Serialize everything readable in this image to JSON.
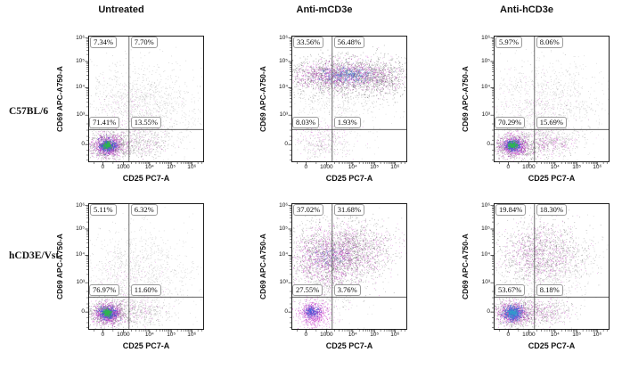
{
  "figure": {
    "column_titles": [
      "Untreated",
      "Anti-mCD3e",
      "Anti-hCD3e"
    ],
    "row_labels": [
      "C57BL/6",
      "hCD3E/Vst"
    ]
  },
  "axes": {
    "x_label": "CD25 PC7-A",
    "y_label": "CD69 APC-A750-A",
    "x_ticks": {
      "labels": [
        "0",
        "1000",
        "10⁴",
        "10⁵",
        "10⁶"
      ],
      "pos": [
        0.12,
        0.3,
        0.53,
        0.72,
        0.9
      ],
      "log_pairs": [
        [
          1,
          2
        ],
        [
          2,
          3
        ],
        [
          3,
          4
        ]
      ],
      "minor_extra": [
        0.045,
        0.21,
        0.954,
        0.986
      ]
    },
    "y_ticks": {
      "labels": [
        "10⁶",
        "10⁵",
        "10⁴",
        "10³",
        "0"
      ],
      "pos": [
        0.012,
        0.2,
        0.41,
        0.63,
        0.865
      ],
      "log_pairs": [
        [
          1,
          0
        ],
        [
          2,
          1
        ],
        [
          3,
          2
        ]
      ],
      "minor_extra": [
        0.7,
        0.75,
        0.8,
        0.83,
        0.91,
        0.95,
        0.99
      ]
    },
    "gate_x": 0.35,
    "gate_y": 0.745,
    "frame_color": "#1c1c1c",
    "gate_color": "#4a4a4a"
  },
  "chart_data": [
    {
      "type": "scatter",
      "row_label": "C57BL/6",
      "treatment": "Untreated",
      "quadrants": {
        "ul": "7.34%",
        "ur": "7.70%",
        "ll": "71.41%",
        "lr": "13.55%"
      },
      "clusters": [
        {
          "n": 1000,
          "x": 0.36,
          "y": 0.56,
          "sx": 0.23,
          "sy": 0.2,
          "c": "#6a6a6a",
          "a": 0.3
        },
        {
          "n": 380,
          "x": 0.63,
          "y": 0.6,
          "sx": 0.2,
          "sy": 0.17,
          "c": "#6a6a6a",
          "a": 0.26
        },
        {
          "n": 150,
          "x": 0.32,
          "y": 0.66,
          "sx": 0.18,
          "sy": 0.14,
          "c": "#c62bc6",
          "a": 0.35
        },
        {
          "n": 600,
          "x": 0.17,
          "y": 0.875,
          "sx": 0.1,
          "sy": 0.055,
          "c": "#4a4a4a",
          "a": 0.45
        },
        {
          "n": 700,
          "x": 0.165,
          "y": 0.875,
          "sx": 0.065,
          "sy": 0.042,
          "c": "#c62bc6",
          "a": 0.55
        },
        {
          "n": 300,
          "x": 0.16,
          "y": 0.872,
          "sx": 0.046,
          "sy": 0.031,
          "c": "#7d3fc1",
          "a": 0.65
        },
        {
          "n": 260,
          "x": 0.157,
          "y": 0.87,
          "sx": 0.033,
          "sy": 0.022,
          "c": "#3a5fd9",
          "a": 0.8
        },
        {
          "n": 170,
          "x": 0.155,
          "y": 0.868,
          "sx": 0.02,
          "sy": 0.014,
          "c": "#2db84b",
          "a": 0.95
        },
        {
          "n": 280,
          "x": 0.46,
          "y": 0.86,
          "sx": 0.14,
          "sy": 0.055,
          "c": "#6a6a6a",
          "a": 0.4
        },
        {
          "n": 90,
          "x": 0.43,
          "y": 0.862,
          "sx": 0.12,
          "sy": 0.05,
          "c": "#c62bc6",
          "a": 0.4
        }
      ]
    },
    {
      "type": "scatter",
      "row_label": "C57BL/6",
      "treatment": "Anti-mCD3e",
      "quadrants": {
        "ul": "33.56%",
        "ur": "56.48%",
        "ll": "8.03%",
        "lr": "1.93%"
      },
      "clusters": [
        {
          "n": 1700,
          "x": 0.44,
          "y": 0.315,
          "sx": 0.27,
          "sy": 0.075,
          "c": "#404040",
          "a": 0.45
        },
        {
          "n": 950,
          "x": 0.42,
          "y": 0.31,
          "sx": 0.21,
          "sy": 0.055,
          "c": "#c62bc6",
          "a": 0.5
        },
        {
          "n": 260,
          "x": 0.47,
          "y": 0.305,
          "sx": 0.13,
          "sy": 0.035,
          "c": "#3a5fd9",
          "a": 0.55
        },
        {
          "n": 70,
          "x": 0.5,
          "y": 0.3,
          "sx": 0.08,
          "sy": 0.024,
          "c": "#2fa3c9",
          "a": 0.65
        },
        {
          "n": 550,
          "x": 0.38,
          "y": 0.54,
          "sx": 0.22,
          "sy": 0.15,
          "c": "#6a6a6a",
          "a": 0.25
        },
        {
          "n": 140,
          "x": 0.28,
          "y": 0.8,
          "sx": 0.12,
          "sy": 0.09,
          "c": "#c62bc6",
          "a": 0.38
        },
        {
          "n": 220,
          "x": 0.26,
          "y": 0.87,
          "sx": 0.11,
          "sy": 0.06,
          "c": "#6a6a6a",
          "a": 0.35
        },
        {
          "n": 380,
          "x": 0.8,
          "y": 0.33,
          "sx": 0.13,
          "sy": 0.09,
          "c": "#404040",
          "a": 0.4
        },
        {
          "n": 130,
          "x": 0.77,
          "y": 0.32,
          "sx": 0.12,
          "sy": 0.07,
          "c": "#c62bc6",
          "a": 0.35
        }
      ]
    },
    {
      "type": "scatter",
      "row_label": "C57BL/6",
      "treatment": "Anti-hCD3e",
      "quadrants": {
        "ul": "5.97%",
        "ur": "8.06%",
        "ll": "70.29%",
        "lr": "15.69%"
      },
      "clusters": [
        {
          "n": 850,
          "x": 0.37,
          "y": 0.55,
          "sx": 0.22,
          "sy": 0.19,
          "c": "#6a6a6a",
          "a": 0.28
        },
        {
          "n": 320,
          "x": 0.66,
          "y": 0.52,
          "sx": 0.19,
          "sy": 0.18,
          "c": "#6a6a6a",
          "a": 0.25
        },
        {
          "n": 140,
          "x": 0.36,
          "y": 0.6,
          "sx": 0.2,
          "sy": 0.16,
          "c": "#c62bc6",
          "a": 0.32
        },
        {
          "n": 560,
          "x": 0.17,
          "y": 0.875,
          "sx": 0.1,
          "sy": 0.055,
          "c": "#4a4a4a",
          "a": 0.45
        },
        {
          "n": 660,
          "x": 0.165,
          "y": 0.875,
          "sx": 0.065,
          "sy": 0.042,
          "c": "#c62bc6",
          "a": 0.55
        },
        {
          "n": 260,
          "x": 0.16,
          "y": 0.872,
          "sx": 0.046,
          "sy": 0.031,
          "c": "#7d3fc1",
          "a": 0.65
        },
        {
          "n": 230,
          "x": 0.157,
          "y": 0.87,
          "sx": 0.033,
          "sy": 0.022,
          "c": "#3a5fd9",
          "a": 0.8
        },
        {
          "n": 150,
          "x": 0.155,
          "y": 0.868,
          "sx": 0.02,
          "sy": 0.014,
          "c": "#2db84b",
          "a": 0.95
        },
        {
          "n": 340,
          "x": 0.48,
          "y": 0.85,
          "sx": 0.13,
          "sy": 0.06,
          "c": "#6a6a6a",
          "a": 0.4
        },
        {
          "n": 170,
          "x": 0.46,
          "y": 0.852,
          "sx": 0.11,
          "sy": 0.05,
          "c": "#c62bc6",
          "a": 0.45
        }
      ]
    },
    {
      "type": "scatter",
      "row_label": "hCD3E/Vst",
      "treatment": "Untreated",
      "quadrants": {
        "ul": "5.11%",
        "ur": "6.32%",
        "ll": "76.97%",
        "lr": "11.60%"
      },
      "clusters": [
        {
          "n": 950,
          "x": 0.35,
          "y": 0.56,
          "sx": 0.22,
          "sy": 0.2,
          "c": "#6a6a6a",
          "a": 0.28
        },
        {
          "n": 300,
          "x": 0.62,
          "y": 0.58,
          "sx": 0.2,
          "sy": 0.17,
          "c": "#6a6a6a",
          "a": 0.24
        },
        {
          "n": 140,
          "x": 0.3,
          "y": 0.68,
          "sx": 0.17,
          "sy": 0.13,
          "c": "#c62bc6",
          "a": 0.35
        },
        {
          "n": 620,
          "x": 0.17,
          "y": 0.875,
          "sx": 0.1,
          "sy": 0.055,
          "c": "#4a4a4a",
          "a": 0.45
        },
        {
          "n": 720,
          "x": 0.165,
          "y": 0.875,
          "sx": 0.065,
          "sy": 0.042,
          "c": "#c62bc6",
          "a": 0.55
        },
        {
          "n": 300,
          "x": 0.16,
          "y": 0.872,
          "sx": 0.046,
          "sy": 0.031,
          "c": "#7d3fc1",
          "a": 0.65
        },
        {
          "n": 270,
          "x": 0.157,
          "y": 0.87,
          "sx": 0.033,
          "sy": 0.022,
          "c": "#3a5fd9",
          "a": 0.8
        },
        {
          "n": 180,
          "x": 0.155,
          "y": 0.868,
          "sx": 0.02,
          "sy": 0.014,
          "c": "#2db84b",
          "a": 0.95
        },
        {
          "n": 240,
          "x": 0.45,
          "y": 0.86,
          "sx": 0.13,
          "sy": 0.055,
          "c": "#6a6a6a",
          "a": 0.4
        },
        {
          "n": 80,
          "x": 0.42,
          "y": 0.862,
          "sx": 0.11,
          "sy": 0.05,
          "c": "#c62bc6",
          "a": 0.4
        }
      ]
    },
    {
      "type": "scatter",
      "row_label": "hCD3E/Vst",
      "treatment": "Anti-mCD3e",
      "quadrants": {
        "ul": "37.02%",
        "ur": "31.68%",
        "ll": "27.55%",
        "lr": "3.76%"
      },
      "clusters": [
        {
          "n": 1500,
          "x": 0.35,
          "y": 0.42,
          "sx": 0.2,
          "sy": 0.14,
          "c": "#404040",
          "a": 0.42
        },
        {
          "n": 1000,
          "x": 0.33,
          "y": 0.43,
          "sx": 0.17,
          "sy": 0.12,
          "c": "#c62bc6",
          "a": 0.5
        },
        {
          "n": 500,
          "x": 0.6,
          "y": 0.35,
          "sx": 0.16,
          "sy": 0.1,
          "c": "#404040",
          "a": 0.38
        },
        {
          "n": 260,
          "x": 0.62,
          "y": 0.34,
          "sx": 0.15,
          "sy": 0.09,
          "c": "#c62bc6",
          "a": 0.38
        },
        {
          "n": 90,
          "x": 0.33,
          "y": 0.42,
          "sx": 0.08,
          "sy": 0.05,
          "c": "#3a5fd9",
          "a": 0.55
        },
        {
          "n": 350,
          "x": 0.3,
          "y": 0.67,
          "sx": 0.15,
          "sy": 0.12,
          "c": "#6a6a6a",
          "a": 0.3
        },
        {
          "n": 480,
          "x": 0.18,
          "y": 0.86,
          "sx": 0.07,
          "sy": 0.05,
          "c": "#c62bc6",
          "a": 0.6
        },
        {
          "n": 160,
          "x": 0.17,
          "y": 0.858,
          "sx": 0.042,
          "sy": 0.03,
          "c": "#7d3fc1",
          "a": 0.7
        },
        {
          "n": 120,
          "x": 0.17,
          "y": 0.856,
          "sx": 0.028,
          "sy": 0.02,
          "c": "#3a5fd9",
          "a": 0.8
        },
        {
          "n": 160,
          "x": 0.2,
          "y": 0.93,
          "sx": 0.07,
          "sy": 0.045,
          "c": "#c62bc6",
          "a": 0.45
        },
        {
          "n": 200,
          "x": 0.45,
          "y": 0.45,
          "sx": 0.18,
          "sy": 0.2,
          "c": "#6a6a6a",
          "a": 0.25
        }
      ]
    },
    {
      "type": "scatter",
      "row_label": "hCD3E/Vst",
      "treatment": "Anti-hCD3e",
      "quadrants": {
        "ul": "19.84%",
        "ur": "18.30%",
        "ll": "53.67%",
        "lr": "8.18%"
      },
      "clusters": [
        {
          "n": 1000,
          "x": 0.4,
          "y": 0.4,
          "sx": 0.2,
          "sy": 0.13,
          "c": "#404040",
          "a": 0.38
        },
        {
          "n": 560,
          "x": 0.38,
          "y": 0.4,
          "sx": 0.17,
          "sy": 0.11,
          "c": "#c62bc6",
          "a": 0.42
        },
        {
          "n": 300,
          "x": 0.66,
          "y": 0.42,
          "sx": 0.15,
          "sy": 0.14,
          "c": "#6a6a6a",
          "a": 0.3
        },
        {
          "n": 350,
          "x": 0.35,
          "y": 0.6,
          "sx": 0.2,
          "sy": 0.12,
          "c": "#6a6a6a",
          "a": 0.26
        },
        {
          "n": 620,
          "x": 0.17,
          "y": 0.875,
          "sx": 0.1,
          "sy": 0.055,
          "c": "#4a4a4a",
          "a": 0.45
        },
        {
          "n": 720,
          "x": 0.165,
          "y": 0.875,
          "sx": 0.07,
          "sy": 0.045,
          "c": "#c62bc6",
          "a": 0.55
        },
        {
          "n": 420,
          "x": 0.16,
          "y": 0.872,
          "sx": 0.04,
          "sy": 0.028,
          "c": "#3a5fd9",
          "a": 0.8
        },
        {
          "n": 130,
          "x": 0.156,
          "y": 0.87,
          "sx": 0.023,
          "sy": 0.016,
          "c": "#2fa3c9",
          "a": 0.85
        },
        {
          "n": 300,
          "x": 0.46,
          "y": 0.86,
          "sx": 0.12,
          "sy": 0.055,
          "c": "#6a6a6a",
          "a": 0.4
        },
        {
          "n": 150,
          "x": 0.44,
          "y": 0.862,
          "sx": 0.1,
          "sy": 0.05,
          "c": "#c62bc6",
          "a": 0.45
        }
      ]
    }
  ]
}
